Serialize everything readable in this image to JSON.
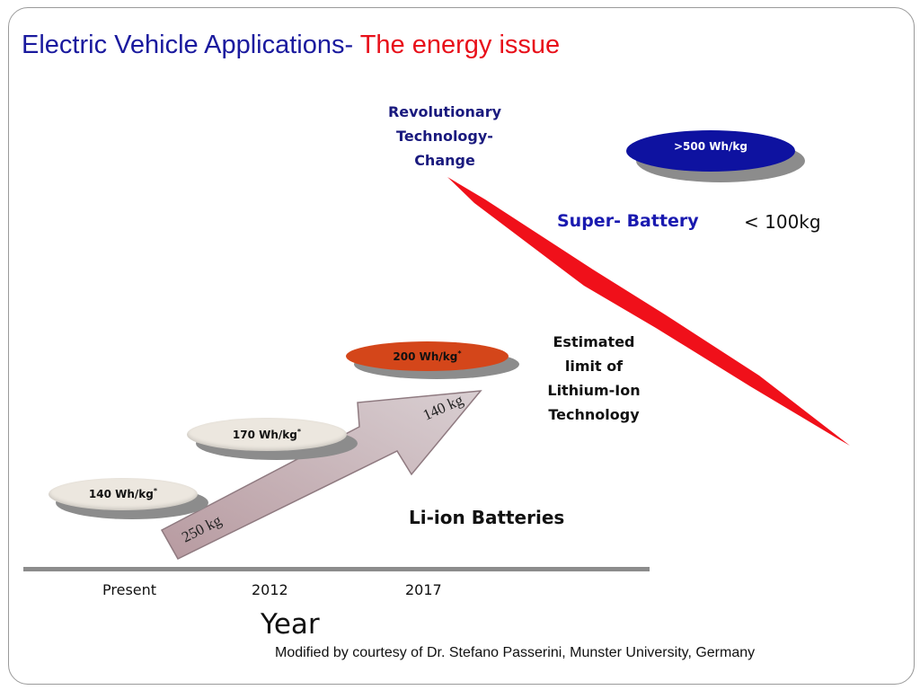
{
  "title": {
    "part1": "Electric Vehicle Applications-",
    "part2": "The energy issue",
    "colors": {
      "part1": "#1a1a9e",
      "part2": "#e8101a"
    }
  },
  "revolutionary": "Revolutionary Technology- Change",
  "super_battery": {
    "label": "Super- Battery",
    "weight": "< 100kg"
  },
  "estimated_limit": "Estimated limit of Lithium-Ion Technology",
  "li_ion": "Li-ion Batteries",
  "ellipses": [
    {
      "label": "140 Wh/kg",
      "sup": "*",
      "color": "#ece7df"
    },
    {
      "label": "170 Wh/kg",
      "sup": "*",
      "color": "#ece7df"
    },
    {
      "label": "200 Wh/kg",
      "sup": "*",
      "color": "#d4461a"
    },
    {
      "label": ">500 Wh/kg",
      "sup": "",
      "color": "#0e12a0"
    }
  ],
  "arrow_labels": {
    "start": "250 kg",
    "end": "140  kg"
  },
  "x_axis": {
    "ticks": [
      "Present",
      "2012",
      "2017"
    ],
    "label": "Year"
  },
  "credit": "Modified  by  courtesy of Dr.  Stefano Passerini, Munster University, Germany"
}
